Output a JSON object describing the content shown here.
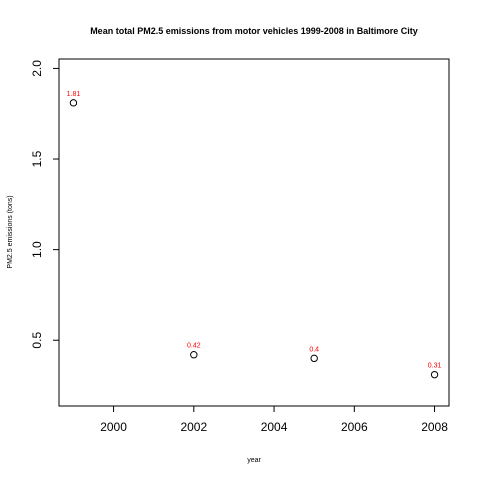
{
  "chart_data": {
    "type": "scatter",
    "title": "Mean total PM2.5 emissions from motor vehicles 1999-2008 in Baltimore City",
    "xlabel": "year",
    "ylabel": "PM2.5 emissions (tons)",
    "x": [
      1999,
      2002,
      2005,
      2008
    ],
    "y": [
      1.81,
      0.42,
      0.4,
      0.31
    ],
    "point_labels": [
      "1.81",
      "0.42",
      "0.4",
      "0.31"
    ],
    "xticks": [
      "2000",
      "2002",
      "2004",
      "2006",
      "2008"
    ],
    "xtick_values": [
      2000,
      2002,
      2004,
      2006,
      2008
    ],
    "yticks": [
      "0.5",
      "1.0",
      "1.5",
      "2.0"
    ],
    "ytick_values": [
      0.5,
      1.0,
      1.5,
      2.0
    ],
    "xlim": [
      1998.64,
      2008.36
    ],
    "ylim": [
      0.137,
      2.052
    ],
    "grid": false,
    "marker": "open-circle",
    "colors": {
      "point": "#000000",
      "label": "#ff0000",
      "axis": "#000000"
    }
  }
}
